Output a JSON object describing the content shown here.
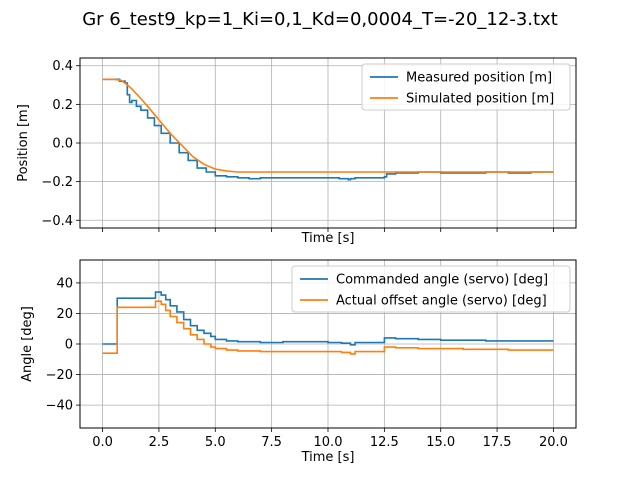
{
  "figure": {
    "title": "Gr 6_test9_kp=1_Ki=0,1_Kd=0,0004_T=-20_12-3.txt"
  },
  "chart_data": [
    {
      "type": "line",
      "xlabel": "Time [s]",
      "ylabel": "Position [m]",
      "xlim": [
        -1.0,
        21.0
      ],
      "ylim": [
        -0.44,
        0.44
      ],
      "xticks": [
        0,
        2.5,
        5,
        7.5,
        10,
        12.5,
        15,
        17.5,
        20
      ],
      "xtick_labels_shown": false,
      "yticks": [
        -0.4,
        -0.2,
        0.0,
        0.2,
        0.4
      ],
      "ytick_labels": [
        "−0.4",
        "−0.2",
        "0.0",
        "0.2",
        "0.4"
      ],
      "grid": true,
      "legend": "top-right",
      "series": [
        {
          "name": "Measured position [m]",
          "color": "#1f77b4",
          "x": [
            0,
            0.3,
            0.6,
            0.75,
            0.9,
            1.0,
            1.1,
            1.2,
            1.3,
            1.5,
            1.7,
            2.0,
            2.3,
            2.6,
            3.0,
            3.4,
            3.8,
            4.2,
            4.6,
            5.0,
            5.5,
            6.0,
            6.5,
            7.0,
            8.0,
            9.0,
            10.0,
            10.5,
            10.9,
            11.0,
            11.2,
            12.0,
            12.5,
            12.6,
            13.0,
            14.0,
            15.0,
            16.0,
            17.0,
            18.0,
            19.0,
            20.0
          ],
          "y": [
            0.33,
            0.33,
            0.33,
            0.32,
            0.32,
            0.31,
            0.25,
            0.21,
            0.22,
            0.19,
            0.17,
            0.13,
            0.09,
            0.05,
            0.0,
            -0.05,
            -0.09,
            -0.13,
            -0.15,
            -0.17,
            -0.175,
            -0.18,
            -0.185,
            -0.18,
            -0.18,
            -0.18,
            -0.18,
            -0.185,
            -0.19,
            -0.185,
            -0.18,
            -0.18,
            -0.175,
            -0.16,
            -0.155,
            -0.15,
            -0.155,
            -0.155,
            -0.15,
            -0.155,
            -0.15,
            -0.15
          ]
        },
        {
          "name": "Simulated position [m]",
          "color": "#ff7f0e",
          "x": [
            0,
            0.5,
            0.8,
            1.0,
            1.3,
            1.7,
            2.0,
            2.5,
            3.0,
            3.5,
            4.0,
            4.5,
            5.0,
            5.5,
            6.0,
            6.5,
            7.0,
            10.0,
            12.5,
            15.0,
            17.5,
            20.0
          ],
          "y": [
            0.33,
            0.33,
            0.325,
            0.31,
            0.28,
            0.23,
            0.19,
            0.12,
            0.05,
            -0.01,
            -0.07,
            -0.11,
            -0.135,
            -0.145,
            -0.15,
            -0.15,
            -0.15,
            -0.15,
            -0.15,
            -0.15,
            -0.15,
            -0.15
          ]
        }
      ]
    },
    {
      "type": "line",
      "xlabel": "Time [s]",
      "ylabel": "Angle [deg]",
      "xlim": [
        -1.0,
        21.0
      ],
      "ylim": [
        -55,
        55
      ],
      "xticks": [
        0,
        2.5,
        5,
        7.5,
        10,
        12.5,
        15,
        17.5,
        20
      ],
      "xtick_labels": [
        "0.0",
        "2.5",
        "5.0",
        "7.5",
        "10.0",
        "12.5",
        "15.0",
        "17.5",
        "20.0"
      ],
      "yticks": [
        -40,
        -20,
        0,
        20,
        40
      ],
      "ytick_labels": [
        "−40",
        "−20",
        "0",
        "20",
        "40"
      ],
      "grid": true,
      "legend": "top-right",
      "series": [
        {
          "name": "Commanded angle (servo) [deg]",
          "color": "#1f77b4",
          "x": [
            0,
            0.6,
            0.65,
            2.3,
            2.35,
            2.6,
            2.8,
            3.0,
            3.3,
            3.6,
            3.9,
            4.2,
            4.5,
            4.8,
            5.0,
            5.5,
            6.0,
            7.0,
            8.0,
            9.0,
            10.0,
            10.6,
            11.0,
            11.2,
            12.4,
            12.5,
            13.0,
            14.0,
            15.0,
            16.0,
            17.0,
            18.0,
            19.0,
            20.0
          ],
          "y": [
            0,
            0,
            30,
            30,
            34,
            32,
            29,
            25,
            21,
            16,
            12,
            9,
            7,
            5,
            3,
            2,
            1.5,
            1,
            1.5,
            1.5,
            1,
            0.5,
            -0.5,
            1,
            1,
            4,
            3.5,
            3,
            2.5,
            2.5,
            2,
            2,
            2,
            2
          ]
        },
        {
          "name": "Actual offset angle (servo) [deg]",
          "color": "#ff7f0e",
          "x": [
            0,
            0.6,
            0.65,
            2.3,
            2.35,
            2.6,
            2.8,
            3.0,
            3.3,
            3.6,
            3.9,
            4.2,
            4.5,
            4.8,
            5.0,
            5.5,
            6.0,
            7.0,
            8.0,
            9.0,
            10.0,
            10.6,
            11.0,
            11.2,
            12.4,
            12.5,
            13.0,
            14.0,
            15.0,
            16.0,
            17.0,
            18.0,
            19.0,
            20.0
          ],
          "y": [
            -6,
            -6,
            24,
            24,
            28,
            26,
            22,
            18,
            14,
            10,
            6,
            3,
            0,
            -2,
            -3,
            -4,
            -4.5,
            -5,
            -5,
            -5,
            -5,
            -5.5,
            -6.5,
            -5,
            -5,
            -2,
            -2.5,
            -3,
            -3,
            -3.5,
            -3.5,
            -4,
            -4,
            -4
          ]
        }
      ]
    }
  ]
}
